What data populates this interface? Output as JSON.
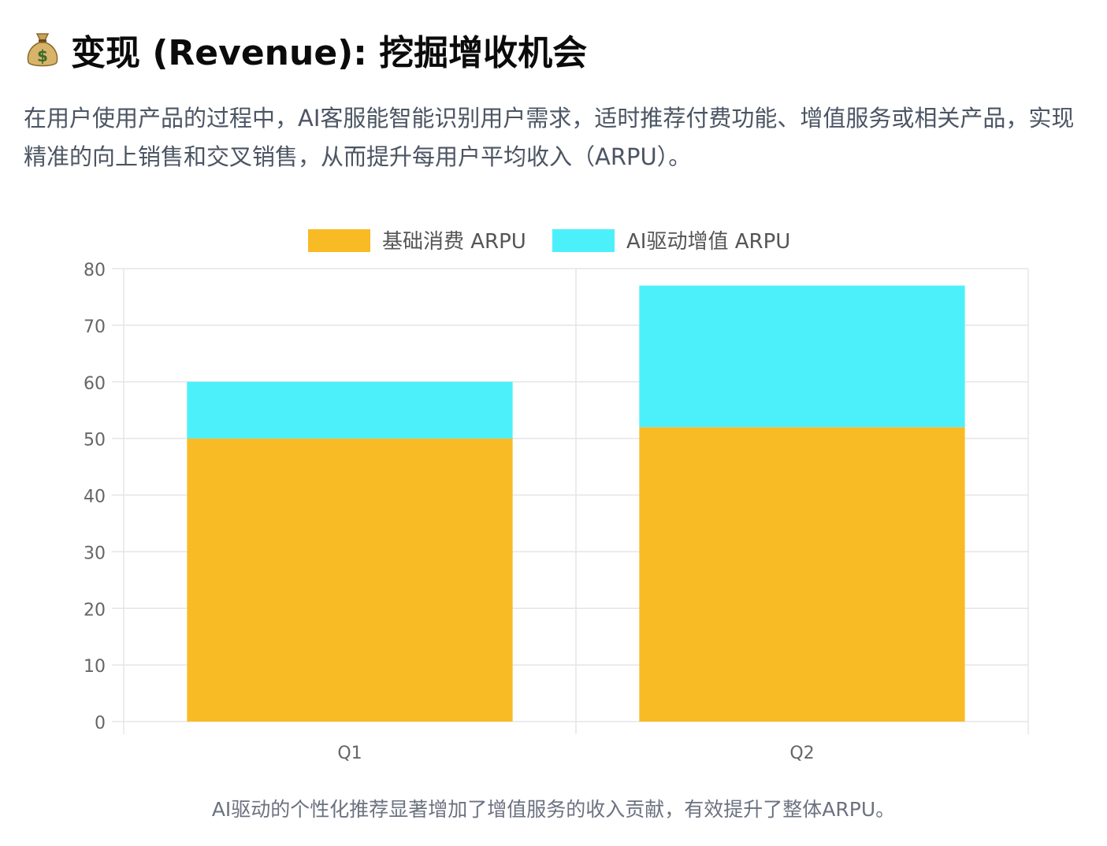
{
  "header": {
    "icon": "money-bag-icon",
    "title": "变现 (Revenue): 挖掘增收机会"
  },
  "description": "在用户使用产品的过程中，AI客服能智能识别用户需求，适时推荐付费功能、增值服务或相关产品，实现精准的向上销售和交叉销售，从而提升每用户平均收入（ARPU）。",
  "caption": "AI驱动的个性化推荐显著增加了增值服务的收入贡献，有效提升了整体ARPU。",
  "chart_data": {
    "type": "bar",
    "stacked": true,
    "categories": [
      "Q1",
      "Q2"
    ],
    "series": [
      {
        "name": "基础消费 ARPU",
        "values": [
          50,
          52
        ],
        "color": "#f8bb25"
      },
      {
        "name": "AI驱动增值 ARPU",
        "values": [
          10,
          25
        ],
        "color": "#4cf0fb"
      }
    ],
    "ylim": [
      0,
      80
    ],
    "yticks": [
      "0",
      "10",
      "20",
      "30",
      "40",
      "50",
      "60",
      "70",
      "80"
    ],
    "grid": true,
    "legend": "top"
  }
}
